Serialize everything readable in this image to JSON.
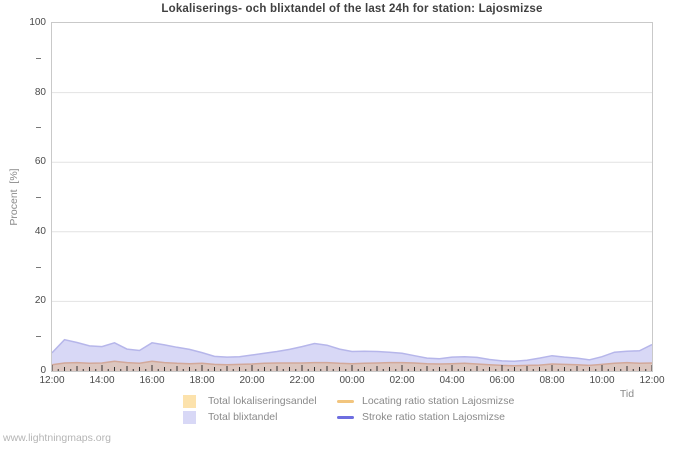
{
  "page": {
    "watermark": "www.lightningmaps.org"
  },
  "chart_data": {
    "type": "area",
    "title": "Lokaliserings- och blixtandel of the last 24h for station: Lajosmizse",
    "xlabel": "Tid",
    "ylabel": "Procent  [%]",
    "ylim": [
      0,
      100
    ],
    "grid": true,
    "legend_position": "bottom",
    "y_major_ticks": [
      0,
      20,
      40,
      60,
      80,
      100
    ],
    "y_minor_ticks": [
      10,
      30,
      50,
      70,
      90
    ],
    "x_tick_labels": [
      "12:00",
      "14:00",
      "16:00",
      "18:00",
      "20:00",
      "22:00",
      "00:00",
      "02:00",
      "04:00",
      "06:00",
      "08:00",
      "10:00",
      "12:00"
    ],
    "x_minor_tick_interval_minutes": 15,
    "x": [
      "12:00",
      "12:30",
      "13:00",
      "13:30",
      "14:00",
      "14:30",
      "15:00",
      "15:30",
      "16:00",
      "16:30",
      "17:00",
      "17:30",
      "18:00",
      "18:30",
      "19:00",
      "19:30",
      "20:00",
      "20:30",
      "21:00",
      "21:30",
      "22:00",
      "22:30",
      "23:00",
      "23:30",
      "00:00",
      "00:30",
      "01:00",
      "01:30",
      "02:00",
      "02:30",
      "03:00",
      "03:30",
      "04:00",
      "04:30",
      "05:00",
      "05:30",
      "06:00",
      "06:30",
      "07:00",
      "07:30",
      "08:00",
      "08:30",
      "09:00",
      "09:30",
      "10:00",
      "10:30",
      "11:00",
      "11:30",
      "12:00"
    ],
    "series": [
      {
        "name": "Total lokaliseringsandel",
        "type": "area",
        "color": "#fce2ac",
        "values": [
          1.8,
          2.3,
          2.4,
          2.2,
          2.3,
          2.8,
          2.4,
          2.2,
          2.8,
          2.4,
          2.2,
          2.1,
          2.2,
          1.9,
          1.8,
          1.9,
          2.0,
          2.2,
          2.3,
          2.3,
          2.3,
          2.4,
          2.4,
          2.2,
          2.1,
          2.2,
          2.3,
          2.4,
          2.4,
          2.3,
          2.1,
          2.0,
          2.1,
          2.2,
          2.0,
          1.8,
          1.6,
          1.5,
          1.6,
          1.7,
          2.0,
          1.9,
          1.8,
          1.6,
          1.9,
          2.2,
          2.4,
          2.2,
          2.3
        ]
      },
      {
        "name": "Total blixtandel",
        "type": "area",
        "color": "#d8d8f6",
        "values": [
          5.2,
          9.0,
          8.2,
          7.2,
          7.0,
          8.1,
          6.3,
          5.9,
          8.1,
          7.5,
          6.8,
          6.2,
          5.3,
          4.2,
          4.0,
          4.1,
          4.6,
          5.1,
          5.6,
          6.2,
          7.0,
          7.9,
          7.4,
          6.3,
          5.6,
          5.7,
          5.6,
          5.4,
          5.1,
          4.4,
          3.7,
          3.5,
          4.0,
          4.1,
          3.9,
          3.3,
          2.9,
          2.8,
          3.1,
          3.7,
          4.4,
          4.0,
          3.7,
          3.2,
          4.1,
          5.4,
          5.7,
          5.8,
          7.6
        ]
      },
      {
        "name": "Locating ratio station Lajosmizse",
        "type": "line",
        "color": "#f2c57e",
        "note": "visually coincides with Total lokaliseringsandel area top edge",
        "values": [
          1.8,
          2.3,
          2.4,
          2.2,
          2.3,
          2.8,
          2.4,
          2.2,
          2.8,
          2.4,
          2.2,
          2.1,
          2.2,
          1.9,
          1.8,
          1.9,
          2.0,
          2.2,
          2.3,
          2.3,
          2.3,
          2.4,
          2.4,
          2.2,
          2.1,
          2.2,
          2.3,
          2.4,
          2.4,
          2.3,
          2.1,
          2.0,
          2.1,
          2.2,
          2.0,
          1.8,
          1.6,
          1.5,
          1.6,
          1.7,
          2.0,
          1.9,
          1.8,
          1.6,
          1.9,
          2.2,
          2.4,
          2.2,
          2.3
        ]
      },
      {
        "name": "Stroke ratio station Lajosmizse",
        "type": "line",
        "color": "#6e6ee0",
        "note": "visually coincides with Total blixtandel area top edge",
        "values": [
          5.2,
          9.0,
          8.2,
          7.2,
          7.0,
          8.1,
          6.3,
          5.9,
          8.1,
          7.5,
          6.8,
          6.2,
          5.3,
          4.2,
          4.0,
          4.1,
          4.6,
          5.1,
          5.6,
          6.2,
          7.0,
          7.9,
          7.4,
          6.3,
          5.6,
          5.7,
          5.6,
          5.4,
          5.1,
          4.4,
          3.7,
          3.5,
          4.0,
          4.1,
          3.9,
          3.3,
          2.9,
          2.8,
          3.1,
          3.7,
          4.4,
          4.0,
          3.7,
          3.2,
          4.1,
          5.4,
          5.7,
          5.8,
          7.6
        ]
      }
    ],
    "plot_style": {
      "blix_fill": "#d8d8f6",
      "blix_edge": "#b6b6ea",
      "lok_fill_blended": "#dcc6bf",
      "lok_edge": "#d2a89a",
      "gridline_color": "#e2e2e2",
      "frame_color": "#c9c9c9",
      "tick_color": "#333333"
    }
  }
}
